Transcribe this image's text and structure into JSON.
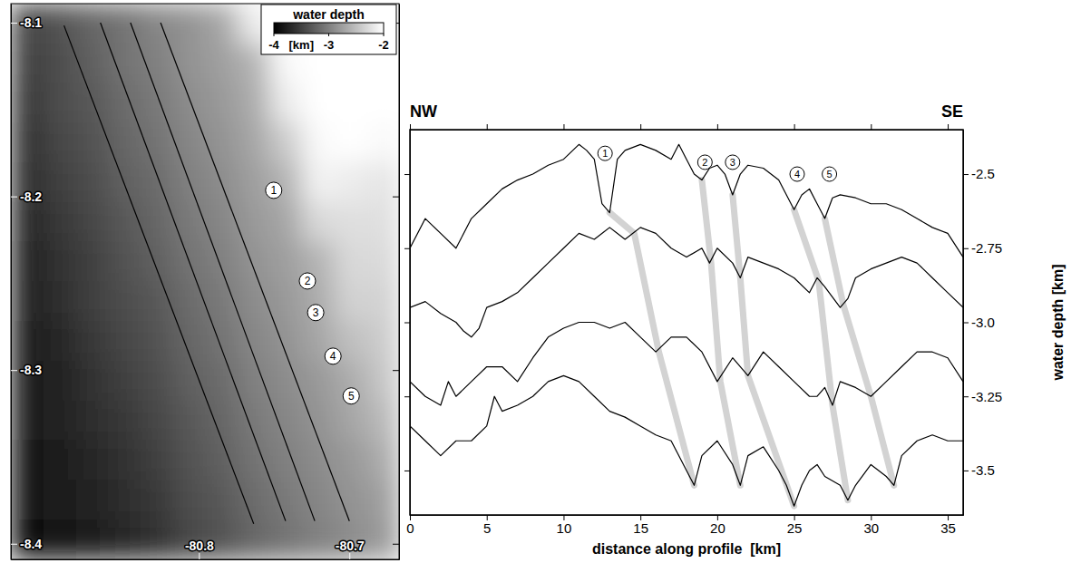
{
  "chart_data": [
    {
      "type": "heatmap",
      "xlim": [
        -80.925,
        -80.667
      ],
      "ylim": [
        -8.409,
        -8.089
      ],
      "xticks": [
        -80.8,
        -80.7
      ],
      "yticks": [
        -8.1,
        -8.2,
        -8.3,
        -8.4
      ],
      "x_edges": [
        -80.925,
        -80.9035,
        -80.882,
        -80.8605,
        -80.839,
        -80.8175,
        -80.796,
        -80.7745,
        -80.753,
        -80.7315,
        -80.71,
        -80.6885,
        -80.667
      ],
      "y_edges": [
        -8.089,
        -8.1119,
        -8.1347,
        -8.1576,
        -8.1804,
        -8.2033,
        -8.2261,
        -8.249,
        -8.2719,
        -8.2947,
        -8.3176,
        -8.3404,
        -8.3633,
        -8.3861,
        -8.409
      ],
      "cells": [
        [
          -3.45,
          -3.35,
          -3.2,
          -3.1,
          -2.95,
          -2.85,
          -2.7,
          -2.15,
          -2.0,
          -2.0,
          -2.0,
          -2.0
        ],
        [
          -3.5,
          -3.4,
          -3.25,
          -3.1,
          -3.0,
          -2.85,
          -2.75,
          -2.6,
          -2.05,
          -2.0,
          -2.0,
          -2.0
        ],
        [
          -3.55,
          -3.4,
          -3.3,
          -3.15,
          -3.05,
          -2.9,
          -2.8,
          -2.65,
          -2.15,
          -2.0,
          -2.0,
          -2.0
        ],
        [
          -3.6,
          -3.45,
          -3.35,
          -3.2,
          -3.1,
          -2.95,
          -2.85,
          -2.7,
          -2.4,
          -2.05,
          -2.0,
          -2.05
        ],
        [
          -3.65,
          -3.5,
          -3.4,
          -3.25,
          -3.15,
          -3.0,
          -2.9,
          -2.75,
          -2.6,
          -2.1,
          -2.15,
          -2.2
        ],
        [
          -3.7,
          -3.55,
          -3.45,
          -3.3,
          -3.2,
          -3.05,
          -2.95,
          -2.8,
          -2.7,
          -2.3,
          -2.25,
          -2.25
        ],
        [
          -3.75,
          -3.6,
          -3.5,
          -3.35,
          -3.25,
          -3.1,
          -3.0,
          -2.85,
          -2.75,
          -2.6,
          -2.3,
          -2.3
        ],
        [
          -3.75,
          -3.65,
          -3.5,
          -3.4,
          -3.3,
          -3.15,
          -3.05,
          -2.9,
          -2.8,
          -2.65,
          -2.35,
          -2.35
        ],
        [
          -3.8,
          -3.7,
          -3.55,
          -3.45,
          -3.35,
          -3.2,
          -3.1,
          -2.95,
          -2.85,
          -2.7,
          -2.5,
          -2.4
        ],
        [
          -3.8,
          -3.75,
          -3.6,
          -3.5,
          -3.4,
          -3.25,
          -3.15,
          -3.0,
          -2.9,
          -2.8,
          -2.65,
          -2.45
        ],
        [
          -3.8,
          -3.75,
          -3.65,
          -3.55,
          -3.45,
          -3.3,
          -3.2,
          -3.05,
          -2.95,
          -2.85,
          -2.7,
          -2.55
        ],
        [
          -3.85,
          -3.8,
          -3.7,
          -3.6,
          -3.5,
          -3.35,
          -3.25,
          -3.1,
          -3.0,
          -2.9,
          -2.8,
          -2.65
        ],
        [
          -3.85,
          -3.8,
          -3.75,
          -3.65,
          -3.55,
          -3.4,
          -3.3,
          -3.15,
          -3.05,
          -2.95,
          -2.85,
          -2.75
        ],
        [
          -3.9,
          -3.85,
          -3.8,
          -3.7,
          -3.6,
          -3.45,
          -3.35,
          -3.2,
          -3.1,
          -3.0,
          -2.9,
          -2.8
        ]
      ],
      "colorbar": {
        "title": "water depth",
        "label": "[km]",
        "range": [
          -4,
          -2
        ],
        "ticks": [
          -4,
          -3,
          -2
        ]
      },
      "profiles": [
        {
          "lon": [
            -80.8897,
            -80.7636
          ],
          "lat": [
            -8.1016,
            -8.3885
          ]
        },
        {
          "lon": [
            -80.8655,
            -80.7424
          ],
          "lat": [
            -8.1,
            -8.3869
          ]
        },
        {
          "lon": [
            -80.8455,
            -80.723
          ],
          "lat": [
            -8.1,
            -8.3869
          ]
        },
        {
          "lon": [
            -80.8255,
            -80.7
          ],
          "lat": [
            -8.1,
            -8.3869
          ]
        }
      ],
      "annotations": [
        {
          "text": "1",
          "x": -80.7503,
          "y": -8.1965
        },
        {
          "text": "2",
          "x": -80.7279,
          "y": -8.2487
        },
        {
          "text": "3",
          "x": -80.7224,
          "y": -8.2669
        },
        {
          "text": "4",
          "x": -80.7109,
          "y": -8.292
        },
        {
          "text": "5",
          "x": -80.6988,
          "y": -8.3149
        }
      ]
    },
    {
      "type": "line",
      "xlabel": "distance along profile  [km]",
      "ylabel": "water depth [km]",
      "direction_labels": [
        "NW",
        "SE"
      ],
      "xlim": [
        0,
        36
      ],
      "ylim": [
        -3.65,
        -2.35
      ],
      "xticks": [
        0,
        5,
        10,
        15,
        20,
        25,
        30,
        35
      ],
      "yticks": [
        -2.5,
        -2.75,
        {
          "value": -3,
          "label": "-3.0"
        },
        -3.25,
        -3.5
      ],
      "series": [
        {
          "color": "#000000",
          "x": [
            0,
            1,
            2,
            3,
            4,
            5,
            6,
            7,
            8,
            9,
            10,
            11,
            11.5,
            12,
            12.5,
            13,
            13.5,
            14,
            15,
            16,
            17,
            17.5,
            18,
            18.5,
            19,
            19.5,
            20,
            20.5,
            21,
            21.5,
            22,
            23,
            24,
            25,
            25.5,
            26,
            26.5,
            27,
            27.5,
            28,
            29,
            30,
            31,
            32,
            33,
            34,
            35,
            36
          ],
          "values": [
            -2.75,
            -2.65,
            -2.7,
            -2.75,
            -2.65,
            -2.6,
            -2.55,
            -2.52,
            -2.5,
            -2.47,
            -2.45,
            -2.4,
            -2.42,
            -2.45,
            -2.6,
            -2.63,
            -2.45,
            -2.42,
            -2.4,
            -2.42,
            -2.45,
            -2.4,
            -2.45,
            -2.5,
            -2.52,
            -2.48,
            -2.47,
            -2.5,
            -2.57,
            -2.5,
            -2.47,
            -2.48,
            -2.52,
            -2.62,
            -2.57,
            -2.55,
            -2.6,
            -2.65,
            -2.58,
            -2.57,
            -2.58,
            -2.6,
            -2.6,
            -2.62,
            -2.65,
            -2.68,
            -2.7,
            -2.78
          ]
        },
        {
          "color": "#000000",
          "x": [
            0,
            1,
            2,
            3,
            3.5,
            4,
            4.5,
            5,
            6,
            7,
            8,
            9,
            10,
            11,
            12,
            13,
            14,
            15,
            16,
            17,
            18,
            19,
            19.5,
            20,
            21,
            21.5,
            22,
            23,
            24,
            25,
            26,
            26.5,
            27,
            28,
            28.5,
            29,
            30,
            31,
            32,
            33,
            34,
            35,
            36
          ],
          "values": [
            -2.95,
            -2.93,
            -2.97,
            -3.0,
            -3.03,
            -3.05,
            -3.02,
            -2.95,
            -2.93,
            -2.9,
            -2.85,
            -2.8,
            -2.75,
            -2.7,
            -2.72,
            -2.68,
            -2.72,
            -2.68,
            -2.7,
            -2.75,
            -2.78,
            -2.75,
            -2.8,
            -2.75,
            -2.8,
            -2.85,
            -2.78,
            -2.8,
            -2.82,
            -2.85,
            -2.9,
            -2.85,
            -2.88,
            -2.95,
            -2.92,
            -2.85,
            -2.82,
            -2.8,
            -2.78,
            -2.8,
            -2.85,
            -2.9,
            -2.95
          ]
        },
        {
          "color": "#000000",
          "x": [
            0,
            1,
            2,
            2.5,
            3,
            4,
            5,
            6,
            7,
            8,
            9,
            10,
            11,
            12,
            13,
            14,
            15,
            16,
            17,
            18,
            19,
            20,
            21,
            22,
            23,
            24,
            25,
            26,
            26.5,
            27,
            27.5,
            28,
            29,
            30,
            31,
            32,
            33,
            34,
            35,
            36
          ],
          "values": [
            -3.2,
            -3.25,
            -3.28,
            -3.2,
            -3.25,
            -3.2,
            -3.15,
            -3.15,
            -3.2,
            -3.12,
            -3.05,
            -3.02,
            -3.0,
            -3.0,
            -3.02,
            -3.0,
            -3.05,
            -3.1,
            -3.05,
            -3.05,
            -3.1,
            -3.2,
            -3.12,
            -3.18,
            -3.1,
            -3.15,
            -3.2,
            -3.25,
            -3.25,
            -3.22,
            -3.28,
            -3.2,
            -3.22,
            -3.25,
            -3.2,
            -3.15,
            -3.1,
            -3.1,
            -3.12,
            -3.2
          ]
        },
        {
          "color": "#000000",
          "x": [
            0,
            1,
            2,
            3,
            4,
            5,
            5.5,
            6,
            7,
            8,
            9,
            10,
            11,
            12,
            13,
            14,
            15,
            16,
            17,
            18,
            18.5,
            19,
            20,
            21,
            21.5,
            22,
            23,
            24,
            24.5,
            25,
            25.5,
            26,
            26.5,
            27,
            28,
            28.5,
            29,
            30,
            31,
            31.5,
            32,
            33,
            34,
            35,
            36
          ],
          "values": [
            -3.35,
            -3.4,
            -3.45,
            -3.4,
            -3.4,
            -3.35,
            -3.25,
            -3.3,
            -3.28,
            -3.25,
            -3.2,
            -3.18,
            -3.2,
            -3.25,
            -3.3,
            -3.32,
            -3.35,
            -3.38,
            -3.4,
            -3.5,
            -3.55,
            -3.45,
            -3.4,
            -3.48,
            -3.55,
            -3.45,
            -3.42,
            -3.5,
            -3.55,
            -3.62,
            -3.55,
            -3.5,
            -3.48,
            -3.52,
            -3.55,
            -3.6,
            -3.55,
            -3.48,
            -3.52,
            -3.55,
            -3.45,
            -3.4,
            -3.38,
            -3.4,
            -3.4
          ]
        }
      ],
      "bands": [
        {
          "color": "#d3d3d3",
          "x": [
            13,
            14.6,
            16.2,
            18.5
          ],
          "values": [
            -2.63,
            -2.7,
            -3.1,
            -3.55
          ]
        },
        {
          "color": "#d3d3d3",
          "x": [
            19,
            19.6,
            20.2,
            21.5
          ],
          "values": [
            -2.52,
            -2.8,
            -3.2,
            -3.55
          ]
        },
        {
          "color": "#d3d3d3",
          "x": [
            21,
            21.5,
            22,
            25
          ],
          "values": [
            -2.57,
            -2.85,
            -3.18,
            -3.62
          ]
        },
        {
          "color": "#d3d3d3",
          "x": [
            25,
            26.6,
            27.5,
            28.5
          ],
          "values": [
            -2.62,
            -2.86,
            -3.28,
            -3.6
          ]
        },
        {
          "color": "#d3d3d3",
          "x": [
            27,
            28.2,
            30,
            31.5
          ],
          "values": [
            -2.65,
            -2.94,
            -3.25,
            -3.55
          ]
        }
      ],
      "annotations": [
        {
          "text": "1",
          "x": 12.7,
          "y": -2.43
        },
        {
          "text": "2",
          "x": 19.2,
          "y": -2.46
        },
        {
          "text": "3",
          "x": 21,
          "y": -2.46
        },
        {
          "text": "4",
          "x": 25.2,
          "y": -2.5
        },
        {
          "text": "5",
          "x": 27.3,
          "y": -2.5
        }
      ]
    }
  ]
}
